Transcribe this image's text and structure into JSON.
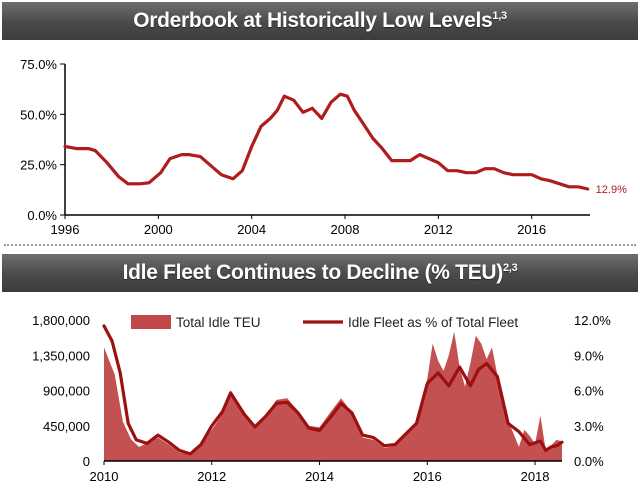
{
  "top_panel": {
    "title": "Orderbook at Historically Low Levels",
    "title_sup": "1,3"
  },
  "bottom_panel": {
    "title": "Idle Fleet Continues to Decline (% TEU)",
    "title_sup": "2,3"
  },
  "colors": {
    "line": "#b01c1c",
    "area": "#c04848",
    "axis": "#000000"
  },
  "chart_data": [
    {
      "type": "line",
      "title": "Orderbook at Historically Low Levels",
      "xlim": [
        1996,
        2018.5
      ],
      "ylim": [
        0,
        75
      ],
      "x_ticks": [
        1996,
        2000,
        2004,
        2008,
        2012,
        2016
      ],
      "x_tick_labels": [
        "1996",
        "2000",
        "2004",
        "2008",
        "2012",
        "2016"
      ],
      "y_ticks": [
        0,
        25,
        50,
        75
      ],
      "y_tick_labels": [
        "0.0%",
        "25.0%",
        "50.0%",
        "75.0%"
      ],
      "end_label": "12.9%",
      "series": [
        {
          "x": [
            1996.0,
            1996.5,
            1997.0,
            1997.3,
            1997.8,
            1998.3,
            1998.7,
            1999.2,
            1999.6,
            2000.1,
            2000.5,
            2001.0,
            2001.3,
            2001.8,
            2002.3,
            2002.7,
            2003.2,
            2003.6,
            2004.0,
            2004.4,
            2004.8,
            2005.1,
            2005.4,
            2005.8,
            2006.2,
            2006.6,
            2007.0,
            2007.4,
            2007.8,
            2008.1,
            2008.4,
            2008.8,
            2009.2,
            2009.6,
            2010.0,
            2010.4,
            2010.8,
            2011.2,
            2011.6,
            2012.0,
            2012.4,
            2012.8,
            2013.2,
            2013.6,
            2014.0,
            2014.4,
            2014.8,
            2015.2,
            2015.6,
            2016.0,
            2016.4,
            2016.8,
            2017.2,
            2017.6,
            2018.0,
            2018.4
          ],
          "y": [
            34,
            33,
            33,
            32,
            26,
            19,
            15.5,
            15.5,
            16,
            21,
            28,
            30,
            30,
            29,
            24,
            20,
            18,
            22,
            34,
            44,
            48,
            52,
            59,
            57,
            51,
            53,
            48,
            56,
            60,
            59,
            52,
            45,
            38,
            33,
            27,
            27,
            27,
            30,
            28,
            26,
            22,
            22,
            21,
            21,
            23,
            23,
            21,
            20,
            20,
            20,
            18,
            17,
            15.5,
            14,
            14,
            12.9
          ]
        }
      ]
    },
    {
      "type": "area",
      "title": "Idle Fleet Continues to Decline (% TEU)",
      "xlim": [
        2010,
        2018.5
      ],
      "x_ticks": [
        2010,
        2012,
        2014,
        2016,
        2018
      ],
      "x_tick_labels": [
        "2010",
        "2012",
        "2014",
        "2016",
        "2018"
      ],
      "y_left_ticks": [
        0,
        450000,
        900000,
        1350000,
        1800000
      ],
      "y_left_tick_labels": [
        "0",
        "450,000",
        "900,000",
        "1,350,000",
        "1,800,000"
      ],
      "y_right_ticks": [
        0,
        3,
        6,
        9,
        12
      ],
      "y_right_tick_labels": [
        "0.0%",
        "3.0%",
        "6.0%",
        "9.0%",
        "12.0%"
      ],
      "ylim_left": [
        0,
        1800000
      ],
      "ylim_right": [
        0,
        12
      ],
      "legend_position": "top",
      "series": [
        {
          "name": "Total Idle TEU",
          "type": "area",
          "axis": "left",
          "x": [
            2010.0,
            2010.2,
            2010.35,
            2010.5,
            2010.65,
            2010.8,
            2011.0,
            2011.2,
            2011.4,
            2011.6,
            2011.8,
            2012.0,
            2012.2,
            2012.35,
            2012.6,
            2012.8,
            2013.0,
            2013.2,
            2013.4,
            2013.6,
            2013.8,
            2014.0,
            2014.2,
            2014.4,
            2014.6,
            2014.8,
            2015.0,
            2015.2,
            2015.4,
            2015.6,
            2015.8,
            2016.0,
            2016.1,
            2016.2,
            2016.3,
            2016.4,
            2016.5,
            2016.6,
            2016.7,
            2016.8,
            2016.9,
            2017.0,
            2017.1,
            2017.2,
            2017.3,
            2017.45,
            2017.6,
            2017.7,
            2017.8,
            2017.9,
            2018.0,
            2018.1,
            2018.2,
            2018.3,
            2018.4,
            2018.5
          ],
          "y": [
            1450000,
            1100000,
            500000,
            280000,
            180000,
            230000,
            300000,
            210000,
            110000,
            80000,
            200000,
            400000,
            600000,
            900000,
            620000,
            420000,
            580000,
            780000,
            800000,
            640000,
            450000,
            430000,
            620000,
            800000,
            620000,
            300000,
            270000,
            170000,
            190000,
            350000,
            480000,
            1050000,
            1500000,
            1280000,
            1150000,
            1350000,
            1650000,
            1200000,
            950000,
            1250000,
            1600000,
            1500000,
            1300000,
            1450000,
            1100000,
            600000,
            350000,
            180000,
            400000,
            320000,
            220000,
            580000,
            130000,
            200000,
            270000,
            250000
          ]
        },
        {
          "name": "Idle Fleet as % of Total Fleet",
          "type": "line",
          "axis": "right",
          "x": [
            2010.0,
            2010.15,
            2010.3,
            2010.45,
            2010.6,
            2010.8,
            2011.0,
            2011.2,
            2011.4,
            2011.6,
            2011.8,
            2012.0,
            2012.2,
            2012.35,
            2012.6,
            2012.8,
            2013.0,
            2013.2,
            2013.4,
            2013.6,
            2013.8,
            2014.0,
            2014.2,
            2014.4,
            2014.6,
            2014.8,
            2015.0,
            2015.2,
            2015.4,
            2015.6,
            2015.8,
            2016.0,
            2016.2,
            2016.4,
            2016.6,
            2016.8,
            2016.95,
            2017.1,
            2017.3,
            2017.5,
            2017.7,
            2017.9,
            2018.1,
            2018.2,
            2018.3,
            2018.4,
            2018.5
          ],
          "y": [
            11.5,
            10.2,
            7.5,
            3.2,
            1.8,
            1.5,
            2.2,
            1.6,
            0.9,
            0.6,
            1.4,
            3.0,
            4.2,
            5.8,
            4.0,
            2.9,
            3.8,
            4.9,
            5.0,
            4.1,
            2.8,
            2.6,
            3.7,
            4.9,
            4.1,
            2.2,
            2.0,
            1.3,
            1.4,
            2.3,
            3.2,
            6.6,
            7.5,
            6.4,
            8.0,
            6.4,
            7.8,
            8.3,
            7.2,
            3.2,
            2.5,
            1.4,
            1.7,
            0.9,
            1.2,
            1.3,
            1.6
          ]
        }
      ]
    }
  ]
}
